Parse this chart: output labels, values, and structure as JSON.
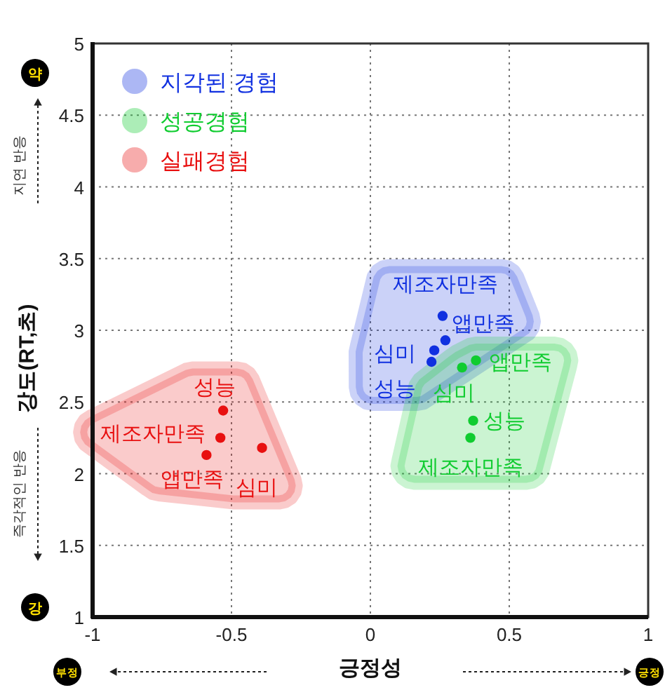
{
  "chart_data": {
    "type": "scatter",
    "xlabel": "긍정성",
    "ylabel": "강도(RT,초)",
    "xlim": [
      -1,
      1
    ],
    "ylim": [
      1,
      5
    ],
    "xticks": [
      -1,
      -0.5,
      0,
      0.5,
      1
    ],
    "yticks": [
      1,
      1.5,
      2,
      2.5,
      3,
      3.5,
      4,
      4.5,
      5
    ],
    "grid": true,
    "legend": "top left",
    "marker": "circle",
    "series": [
      {
        "name": "지각된 경험",
        "color": "#1030e0",
        "x": [
          0.26,
          0.27,
          0.23,
          0.22
        ],
        "values": [
          3.1,
          2.93,
          2.86,
          2.78
        ]
      },
      {
        "name": "성공경험",
        "color": "#10cc30",
        "x": [
          0.38,
          0.33,
          0.37,
          0.36
        ],
        "values": [
          2.79,
          2.74,
          2.37,
          2.25
        ]
      },
      {
        "name": "실패경험",
        "color": "#e81010",
        "x": [
          -0.53,
          -0.54,
          -0.59,
          -0.39
        ],
        "values": [
          2.44,
          2.25,
          2.13,
          2.18
        ]
      }
    ],
    "annotations": [
      {
        "text": "제조자만족",
        "x": 0.27,
        "y": 2.93
      },
      {
        "text": "앱만족",
        "x": 0.26,
        "y": 3.1
      },
      {
        "text": "심미",
        "x": 0.23,
        "y": 2.86
      },
      {
        "text": "성능",
        "x": 0.22,
        "y": 2.78
      },
      {
        "text": "앱만족",
        "x": 0.38,
        "y": 2.79
      },
      {
        "text": "심미",
        "x": 0.33,
        "y": 2.74
      },
      {
        "text": "성능",
        "x": 0.37,
        "y": 2.37
      },
      {
        "text": "제조자만족",
        "x": 0.36,
        "y": 2.25
      },
      {
        "text": "성능",
        "x": -0.53,
        "y": 2.44
      },
      {
        "text": "제조자만족",
        "x": -0.54,
        "y": 2.25
      },
      {
        "text": "앱만족",
        "x": -0.59,
        "y": 2.13
      },
      {
        "text": "심미",
        "x": -0.39,
        "y": 2.18
      },
      "지연 반응",
      "즉각적인 반응",
      "약",
      "강",
      "부정",
      "긍정"
    ]
  }
}
